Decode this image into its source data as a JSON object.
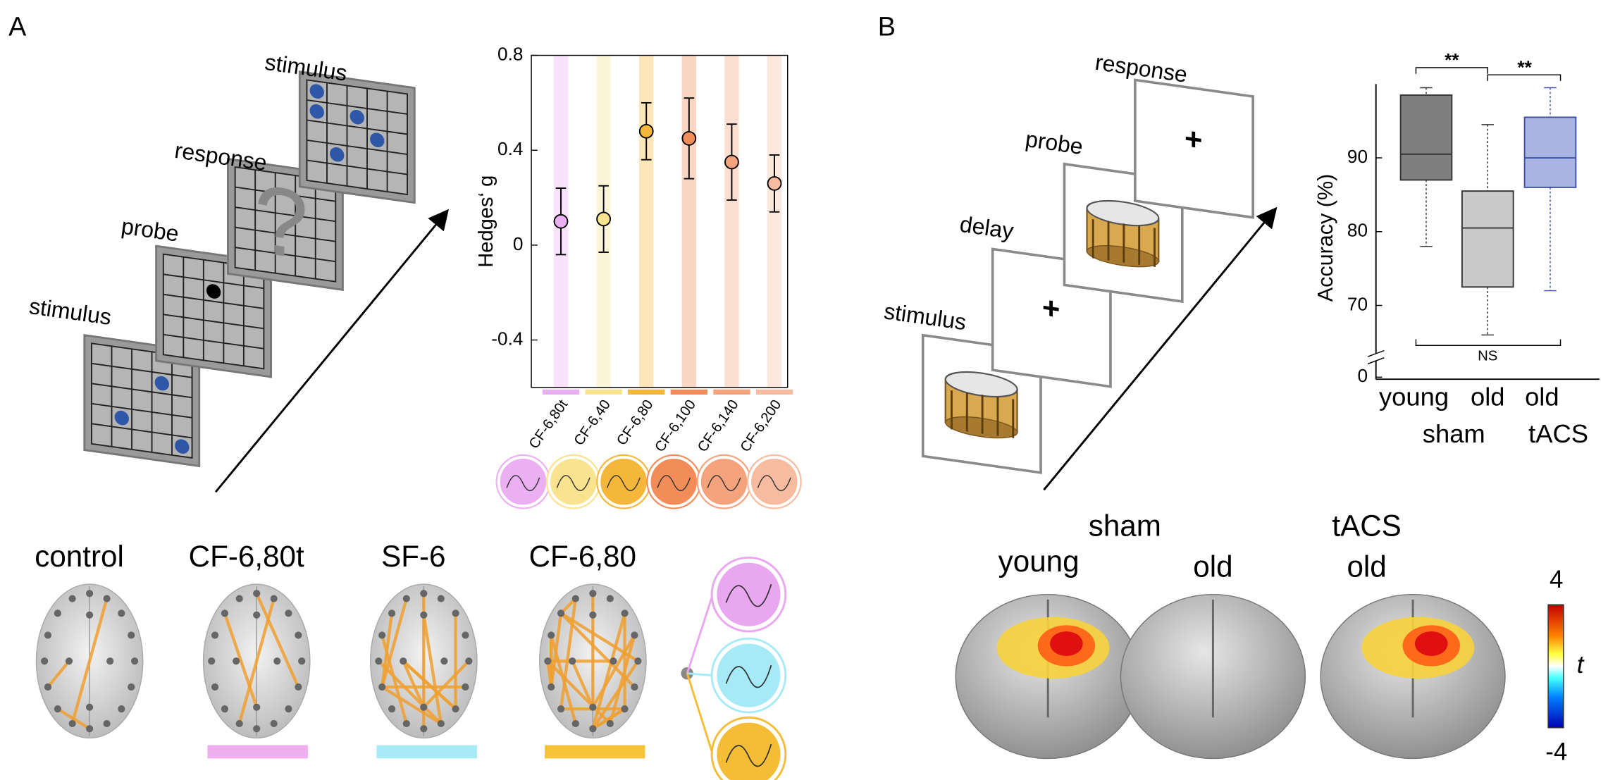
{
  "panels": [
    "A",
    "B"
  ],
  "task_a": [
    "stimulus",
    "probe",
    "response",
    "stimulus"
  ],
  "task_b": [
    "stimulus",
    "delay",
    "probe",
    "response"
  ],
  "brains_a": [
    "control",
    "CF-6,80t",
    "SF-6",
    "CF-6,80"
  ],
  "brains_b": {
    "group_left": "sham",
    "young": "young",
    "old_sham": "old",
    "group_right": "tACS",
    "old_tacs": "old"
  },
  "colorbar": {
    "max": "4",
    "label": "t",
    "min": "-4"
  },
  "chart_data": [
    {
      "type": "errorbar",
      "ylabel": "Hedges‘ g",
      "categories": [
        "CF-6,80t",
        "CF-6,40",
        "CF-6,80",
        "CF-6,100",
        "CF-6,140",
        "CF-6,200"
      ],
      "values": [
        0.1,
        0.11,
        0.48,
        0.45,
        0.35,
        0.26
      ],
      "errors": [
        0.14,
        0.14,
        0.12,
        0.17,
        0.16,
        0.12
      ],
      "colors": [
        "#eab0f2",
        "#f9e38f",
        "#f5b73a",
        "#f28c58",
        "#f5a37c",
        "#f7bc9f"
      ],
      "ylim": [
        -0.6,
        0.8
      ],
      "yticks": [
        0.8,
        0.4,
        0,
        -0.4
      ]
    },
    {
      "type": "box",
      "ylabel": "Accuracy (%)",
      "categories": [
        "young",
        "old",
        "old"
      ],
      "group_labels": [
        "sham",
        "tACS"
      ],
      "low": [
        78,
        66,
        72
      ],
      "q1": [
        87,
        72.5,
        86
      ],
      "median": [
        90.5,
        80.5,
        90
      ],
      "q3": [
        98.5,
        85.5,
        95.5
      ],
      "high": [
        99.5,
        94.5,
        99.5
      ],
      "colors": [
        "#7f7f7f",
        "#c9c9c9",
        "#aab4e2"
      ],
      "ylim": [
        65,
        100
      ],
      "yticks": [
        0,
        70,
        80,
        90
      ],
      "axis_break": true,
      "annotations": [
        "**",
        "**",
        "NS"
      ]
    }
  ]
}
